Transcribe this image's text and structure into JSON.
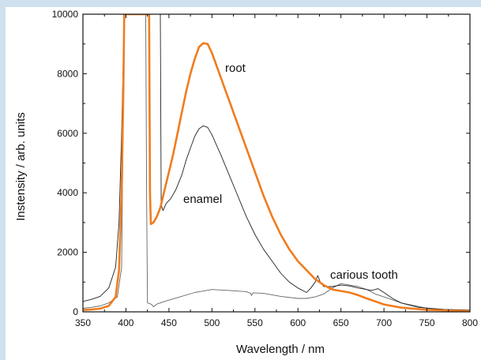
{
  "chart_data": {
    "type": "line",
    "title": "",
    "xlabel": "Wavelength / nm",
    "ylabel": "Instensity / arb. units",
    "xlim": [
      350,
      800
    ],
    "ylim": [
      0,
      10000
    ],
    "x_ticks": [
      "350",
      "400",
      "450",
      "500",
      "550",
      "600",
      "650",
      "700",
      "750",
      "800"
    ],
    "y_ticks": [
      "0",
      "2000",
      "4000",
      "6000",
      "8000",
      "10000"
    ],
    "grid": false,
    "legend": "none",
    "annotations": [
      {
        "text": "root",
        "series": "root"
      },
      {
        "text": "enamel",
        "series": "enamel"
      },
      {
        "text": "carious tooth",
        "series": "carious tooth"
      }
    ],
    "series": [
      {
        "name": "root",
        "color": "#f07c1e",
        "points": [
          [
            350,
            60
          ],
          [
            360,
            80
          ],
          [
            370,
            110
          ],
          [
            380,
            200
          ],
          [
            388,
            500
          ],
          [
            392,
            1400
          ],
          [
            395,
            4000
          ],
          [
            397,
            7500
          ],
          [
            398,
            10000
          ],
          [
            427,
            10000
          ],
          [
            428,
            4000
          ],
          [
            429,
            2950
          ],
          [
            432,
            3000
          ],
          [
            436,
            3200
          ],
          [
            440,
            3500
          ],
          [
            445,
            4100
          ],
          [
            450,
            4700
          ],
          [
            455,
            5300
          ],
          [
            460,
            6000
          ],
          [
            465,
            6700
          ],
          [
            470,
            7400
          ],
          [
            475,
            8000
          ],
          [
            480,
            8500
          ],
          [
            485,
            8900
          ],
          [
            490,
            9030
          ],
          [
            495,
            9000
          ],
          [
            500,
            8700
          ],
          [
            510,
            7900
          ],
          [
            520,
            7100
          ],
          [
            530,
            6300
          ],
          [
            540,
            5500
          ],
          [
            550,
            4700
          ],
          [
            560,
            3900
          ],
          [
            570,
            3200
          ],
          [
            580,
            2600
          ],
          [
            590,
            2100
          ],
          [
            600,
            1700
          ],
          [
            610,
            1400
          ],
          [
            620,
            1100
          ],
          [
            630,
            900
          ],
          [
            640,
            750
          ],
          [
            650,
            700
          ],
          [
            660,
            650
          ],
          [
            670,
            560
          ],
          [
            680,
            450
          ],
          [
            690,
            350
          ],
          [
            700,
            250
          ],
          [
            720,
            140
          ],
          [
            750,
            70
          ],
          [
            780,
            40
          ],
          [
            800,
            30
          ]
        ]
      },
      {
        "name": "enamel",
        "color": "#222222",
        "points": [
          [
            350,
            350
          ],
          [
            360,
            420
          ],
          [
            370,
            520
          ],
          [
            380,
            800
          ],
          [
            388,
            1500
          ],
          [
            392,
            3000
          ],
          [
            395,
            6000
          ],
          [
            398,
            10000
          ],
          [
            440,
            10000
          ],
          [
            441,
            3600
          ],
          [
            443,
            3400
          ],
          [
            447,
            3650
          ],
          [
            452,
            3800
          ],
          [
            458,
            4100
          ],
          [
            465,
            4600
          ],
          [
            470,
            5100
          ],
          [
            475,
            5500
          ],
          [
            480,
            5900
          ],
          [
            485,
            6150
          ],
          [
            490,
            6250
          ],
          [
            495,
            6200
          ],
          [
            500,
            5950
          ],
          [
            510,
            5300
          ],
          [
            520,
            4600
          ],
          [
            530,
            3900
          ],
          [
            540,
            3200
          ],
          [
            550,
            2600
          ],
          [
            560,
            2100
          ],
          [
            570,
            1700
          ],
          [
            580,
            1300
          ],
          [
            590,
            1000
          ],
          [
            600,
            800
          ],
          [
            610,
            650
          ],
          [
            615,
            800
          ],
          [
            620,
            1000
          ],
          [
            623,
            1220
          ],
          [
            626,
            1000
          ],
          [
            630,
            850
          ],
          [
            640,
            850
          ],
          [
            650,
            900
          ],
          [
            660,
            870
          ],
          [
            670,
            800
          ],
          [
            680,
            750
          ],
          [
            685,
            720
          ],
          [
            690,
            750
          ],
          [
            693,
            780
          ],
          [
            700,
            650
          ],
          [
            710,
            450
          ],
          [
            720,
            300
          ],
          [
            740,
            150
          ],
          [
            770,
            80
          ],
          [
            800,
            60
          ]
        ]
      },
      {
        "name": "carious tooth",
        "color": "#666666",
        "points": [
          [
            350,
            120
          ],
          [
            360,
            150
          ],
          [
            370,
            200
          ],
          [
            380,
            300
          ],
          [
            390,
            500
          ],
          [
            395,
            1500
          ],
          [
            398,
            10000
          ],
          [
            423,
            10000
          ],
          [
            424,
            4000
          ],
          [
            425,
            300
          ],
          [
            430,
            250
          ],
          [
            432,
            170
          ],
          [
            436,
            260
          ],
          [
            445,
            350
          ],
          [
            460,
            480
          ],
          [
            480,
            650
          ],
          [
            500,
            750
          ],
          [
            520,
            720
          ],
          [
            540,
            680
          ],
          [
            545,
            620
          ],
          [
            546,
            550
          ],
          [
            548,
            640
          ],
          [
            560,
            620
          ],
          [
            580,
            520
          ],
          [
            600,
            450
          ],
          [
            610,
            450
          ],
          [
            620,
            500
          ],
          [
            630,
            600
          ],
          [
            640,
            800
          ],
          [
            650,
            950
          ],
          [
            660,
            900
          ],
          [
            670,
            850
          ],
          [
            680,
            750
          ],
          [
            690,
            600
          ],
          [
            700,
            500
          ],
          [
            720,
            300
          ],
          [
            750,
            120
          ],
          [
            780,
            60
          ],
          [
            800,
            50
          ]
        ]
      }
    ]
  }
}
